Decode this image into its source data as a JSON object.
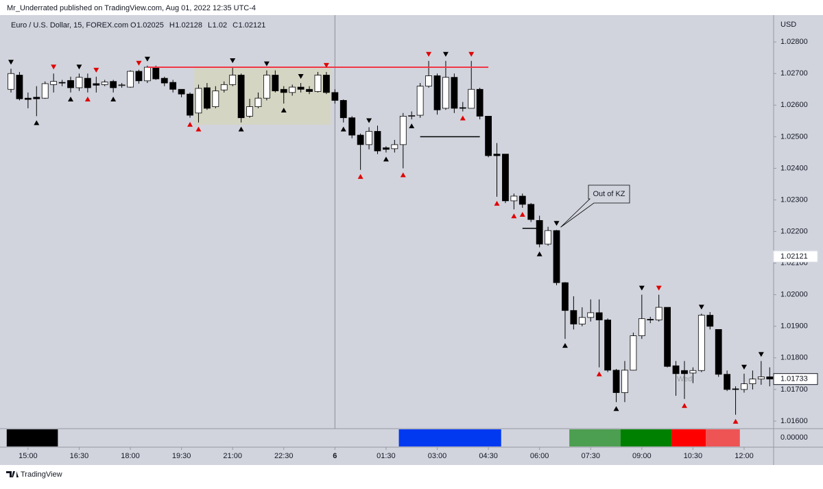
{
  "header": {
    "publisher": "Mr_Underrated published on TradingView.com, Aug 01, 2022 12:35 UTC-4",
    "footer": "TradingView"
  },
  "chart_data": {
    "type": "candlestick",
    "symbol": "Euro / U.S. Dollar, 15, FOREX.com",
    "ohlc_legend": [
      {
        "label": "O",
        "value": 1.02025
      },
      {
        "label": "H",
        "value": 1.02128
      },
      {
        "label": "L",
        "value": 1.02
      },
      {
        "label": "C",
        "value": 1.02121
      }
    ],
    "currency": "USD",
    "price_label": 1.02121,
    "watermark": "Wed",
    "categories": [
      "14:30",
      "14:45",
      "15:00",
      "15:15",
      "15:30",
      "15:45",
      "16:00",
      "16:15",
      "16:30",
      "16:45",
      "17:00",
      "17:15",
      "17:30",
      "17:45",
      "18:00",
      "18:15",
      "18:30",
      "18:45",
      "19:00",
      "19:15",
      "19:30",
      "19:45",
      "20:00",
      "20:15",
      "20:30",
      "20:45",
      "21:00",
      "21:15",
      "21:30",
      "21:45",
      "22:00",
      "22:15",
      "22:30",
      "22:45",
      "23:00",
      "23:15",
      "23:30",
      "23:45",
      "00:00",
      "00:15",
      "00:30",
      "00:45",
      "01:00",
      "01:15",
      "01:30",
      "01:45",
      "02:00",
      "02:15",
      "02:30",
      "02:45",
      "03:00",
      "03:15",
      "03:30",
      "03:45",
      "04:00",
      "04:15",
      "04:30",
      "04:45",
      "05:00",
      "05:15",
      "05:30",
      "05:45",
      "06:00",
      "06:15",
      "06:30",
      "06:45",
      "07:00",
      "07:15",
      "07:30",
      "07:45",
      "08:00",
      "08:15",
      "08:30",
      "08:45",
      "09:00",
      "09:15",
      "09:30",
      "09:45",
      "10:00",
      "10:15",
      "10:30",
      "10:45",
      "11:00",
      "11:15",
      "11:30",
      "11:45",
      "12:00",
      "12:15",
      "12:30",
      "12:45"
    ],
    "open": [
      1.0265,
      1.02695,
      1.02622,
      1.02625,
      1.02622,
      1.02665,
      1.02672,
      1.02678,
      1.02655,
      1.02685,
      1.02668,
      1.02665,
      1.02675,
      1.02662,
      1.02657,
      1.02707,
      1.02677,
      1.0272,
      1.02685,
      1.02672,
      1.0265,
      1.02635,
      1.02575,
      1.02655,
      1.02595,
      1.02648,
      1.02665,
      1.02695,
      1.02565,
      1.02595,
      1.02622,
      1.02695,
      1.0265,
      1.0264,
      1.02657,
      1.0265,
      1.02643,
      1.02695,
      1.0264,
      1.02615,
      1.0256,
      1.02505,
      1.02475,
      1.02517,
      1.02465,
      1.02462,
      1.02475,
      1.02565,
      1.02568,
      1.0266,
      1.02693,
      1.0259,
      1.02688,
      1.02592,
      1.0259,
      1.0265,
      1.02565,
      1.02445,
      1.02445,
      1.02297,
      1.02312,
      1.02286,
      1.02235,
      1.0216,
      1.02203,
      1.02038,
      1.0195,
      1.01907,
      1.01928,
      1.01943,
      1.0192,
      1.01761,
      1.0169,
      1.01761,
      1.0187,
      1.01922,
      1.0192,
      1.0196,
      1.01775,
      1.0176,
      1.01752,
      1.0176,
      1.01935,
      1.0189,
      1.01748,
      1.01702,
      1.017,
      1.01718,
      1.01733,
      1.0174
    ],
    "high": [
      1.02715,
      1.02705,
      1.0264,
      1.0266,
      1.02675,
      1.027,
      1.0268,
      1.0269,
      1.027,
      1.027,
      1.0269,
      1.0268,
      1.0268,
      1.0267,
      1.0271,
      1.02712,
      1.02725,
      1.02725,
      1.0269,
      1.0268,
      1.0265,
      1.0264,
      1.02665,
      1.0267,
      1.0266,
      1.02675,
      1.0272,
      1.027,
      1.0262,
      1.0264,
      1.0271,
      1.0271,
      1.0266,
      1.02665,
      1.0267,
      1.0266,
      1.02705,
      1.02705,
      1.0265,
      1.02618,
      1.02565,
      1.0251,
      1.0253,
      1.02535,
      1.0247,
      1.0249,
      1.02575,
      1.0258,
      1.0267,
      1.0274,
      1.027,
      1.0274,
      1.027,
      1.0261,
      1.0274,
      1.02655,
      1.02565,
      1.0248,
      1.02445,
      1.0232,
      1.0232,
      1.0229,
      1.0225,
      1.02215,
      1.02205,
      1.0204,
      1.01995,
      1.0196,
      1.01985,
      1.01985,
      1.01925,
      1.01765,
      1.0179,
      1.0188,
      1.02,
      1.0193,
      1.02,
      1.0196,
      1.0179,
      1.0179,
      1.0177,
      1.0194,
      1.01945,
      1.0189,
      1.0176,
      1.0171,
      1.0175,
      1.0176,
      1.0179,
      1.0177
    ],
    "low": [
      1.0264,
      1.02615,
      1.0259,
      1.02565,
      1.0262,
      1.0264,
      1.0266,
      1.0264,
      1.02645,
      1.0264,
      1.0264,
      1.0266,
      1.0264,
      1.02655,
      1.02655,
      1.02668,
      1.0267,
      1.0268,
      1.0266,
      1.0264,
      1.02625,
      1.0256,
      1.02545,
      1.02585,
      1.0259,
      1.0264,
      1.0266,
      1.02545,
      1.0256,
      1.0259,
      1.02615,
      1.0264,
      1.02605,
      1.0263,
      1.0264,
      1.02635,
      1.0264,
      1.02635,
      1.02605,
      1.02545,
      1.02495,
      1.02395,
      1.0246,
      1.02445,
      1.0245,
      1.0245,
      1.024,
      1.02555,
      1.0256,
      1.02655,
      1.0257,
      1.02585,
      1.02575,
      1.0258,
      1.0259,
      1.02555,
      1.02435,
      1.0231,
      1.0229,
      1.0227,
      1.02275,
      1.0223,
      1.0215,
      1.02155,
      1.0203,
      1.0186,
      1.0189,
      1.019,
      1.01915,
      1.0177,
      1.01755,
      1.0166,
      1.0166,
      1.0176,
      1.0186,
      1.0191,
      1.01915,
      1.0177,
      1.0168,
      1.0167,
      1.0172,
      1.01755,
      1.0189,
      1.0174,
      1.01695,
      1.0162,
      1.0169,
      1.017,
      1.01715,
      1.0171
    ],
    "close": [
      1.027,
      1.0262,
      1.02618,
      1.0262,
      1.02668,
      1.02675,
      1.0267,
      1.02655,
      1.02688,
      1.02655,
      1.02663,
      1.02673,
      1.02655,
      1.02664,
      1.02707,
      1.02677,
      1.0272,
      1.02683,
      1.0267,
      1.0265,
      1.02635,
      1.02568,
      1.02653,
      1.0259,
      1.02645,
      1.02665,
      1.02695,
      1.0256,
      1.02595,
      1.02622,
      1.02695,
      1.02645,
      1.0264,
      1.02657,
      1.0265,
      1.02643,
      1.02695,
      1.0264,
      1.02615,
      1.0256,
      1.02505,
      1.02475,
      1.02517,
      1.02455,
      1.0246,
      1.02475,
      1.02565,
      1.02567,
      1.0266,
      1.02693,
      1.02585,
      1.02688,
      1.0259,
      1.0259,
      1.0265,
      1.02565,
      1.0244,
      1.0244,
      1.02297,
      1.02312,
      1.02286,
      1.02238,
      1.0216,
      1.02203,
      1.02038,
      1.0195,
      1.01907,
      1.01928,
      1.01943,
      1.0192,
      1.01761,
      1.0169,
      1.01761,
      1.0187,
      1.01924,
      1.0192,
      1.0196,
      1.01773,
      1.0175,
      1.0175,
      1.0176,
      1.01935,
      1.019,
      1.01748,
      1.017,
      1.017,
      1.01718,
      1.01733,
      1.0174,
      1.01733
    ],
    "up_color": "#ffffff",
    "down_color": "#000000",
    "ylim": [
      1.01576,
      1.02885
    ],
    "yticks": [
      {
        "value": 1.028,
        "label": "1.02800"
      },
      {
        "value": 1.027,
        "label": "1.02700"
      },
      {
        "value": 1.026,
        "label": "1.02600"
      },
      {
        "value": 1.025,
        "label": "1.02500"
      },
      {
        "value": 1.024,
        "label": "1.02400"
      },
      {
        "value": 1.023,
        "label": "1.02300"
      },
      {
        "value": 1.022,
        "label": "1.02200"
      },
      {
        "value": 1.021,
        "label": "1.02100"
      },
      {
        "value": 1.02,
        "label": "1.02000"
      },
      {
        "value": 1.019,
        "label": "1.01900"
      },
      {
        "value": 1.018,
        "label": "1.01800"
      },
      {
        "value": 1.017,
        "label": "1.01700"
      },
      {
        "value": 1.016,
        "label": "1.01600"
      }
    ],
    "xticks": [
      "15:00",
      "16:30",
      "18:00",
      "19:30",
      "21:00",
      "22:30",
      {
        "value": "00:00",
        "label": "6"
      },
      "01:30",
      "03:00",
      "04:30",
      "06:00",
      "07:30",
      "09:00",
      "10:30",
      "12:00"
    ],
    "resistance_line": {
      "value": 1.0272,
      "from": 16,
      "to": 56,
      "color": "#f23645"
    },
    "range_box": {
      "top": 1.0272,
      "bottom": 1.02538,
      "from": 22,
      "to": 37,
      "color": "#d6d5c0"
    },
    "level_lines": [
      {
        "value": 1.025,
        "from": 48,
        "to": 55
      },
      {
        "value": 1.0221,
        "from": 60,
        "to": 62
      }
    ],
    "callout": {
      "text": "Out of KZ",
      "index": 64
    },
    "markers_above": [
      {
        "index": 0,
        "color": "#000000"
      },
      {
        "index": 5,
        "color": "#e00000"
      },
      {
        "index": 8,
        "color": "#000000"
      },
      {
        "index": 10,
        "color": "#e00000"
      },
      {
        "index": 15,
        "color": "#e00000"
      },
      {
        "index": 16,
        "color": "#000000"
      },
      {
        "index": 26,
        "color": "#000000"
      },
      {
        "index": 30,
        "color": "#000000"
      },
      {
        "index": 34,
        "color": "#000000"
      },
      {
        "index": 37,
        "color": "#e00000"
      },
      {
        "index": 42,
        "color": "#000000"
      },
      {
        "index": 49,
        "color": "#e00000"
      },
      {
        "index": 51,
        "color": "#000000"
      },
      {
        "index": 54,
        "color": "#e00000"
      },
      {
        "index": 64,
        "color": "#000000"
      },
      {
        "index": 74,
        "color": "#000000"
      },
      {
        "index": 76,
        "color": "#e00000"
      },
      {
        "index": 81,
        "color": "#000000"
      },
      {
        "index": 86,
        "color": "#000000"
      },
      {
        "index": 88,
        "color": "#000000"
      }
    ],
    "markers_below": [
      {
        "index": 3,
        "color": "#000000"
      },
      {
        "index": 7,
        "color": "#000000"
      },
      {
        "index": 9,
        "color": "#e00000"
      },
      {
        "index": 12,
        "color": "#000000"
      },
      {
        "index": 21,
        "color": "#e00000"
      },
      {
        "index": 22,
        "color": "#e00000"
      },
      {
        "index": 27,
        "color": "#000000"
      },
      {
        "index": 32,
        "color": "#000000"
      },
      {
        "index": 39,
        "color": "#000000"
      },
      {
        "index": 41,
        "color": "#e00000"
      },
      {
        "index": 44,
        "color": "#000000"
      },
      {
        "index": 46,
        "color": "#e00000"
      },
      {
        "index": 47,
        "color": "#000000"
      },
      {
        "index": 53,
        "color": "#e00000"
      },
      {
        "index": 57,
        "color": "#e00000"
      },
      {
        "index": 59,
        "color": "#e00000"
      },
      {
        "index": 60,
        "color": "#e00000"
      },
      {
        "index": 62,
        "color": "#000000"
      },
      {
        "index": 65,
        "color": "#000000"
      },
      {
        "index": 69,
        "color": "#e00000"
      },
      {
        "index": 71,
        "color": "#000000"
      },
      {
        "index": 79,
        "color": "#e00000"
      },
      {
        "index": 85,
        "color": "#e00000"
      }
    ],
    "session_bars": [
      {
        "from": 0,
        "to": 5,
        "color": "#000000"
      },
      {
        "from": 46,
        "to": 57,
        "color": "#0039f0"
      },
      {
        "from": 66,
        "to": 71,
        "color": "#4c9e50"
      },
      {
        "from": 72,
        "to": 77,
        "color": "#008000"
      },
      {
        "from": 78,
        "to": 81,
        "color": "#ff0000"
      },
      {
        "from": 82,
        "to": 85,
        "color": "#ee5454"
      }
    ],
    "pane_tick": {
      "value": 0,
      "label": "0.00000"
    }
  }
}
